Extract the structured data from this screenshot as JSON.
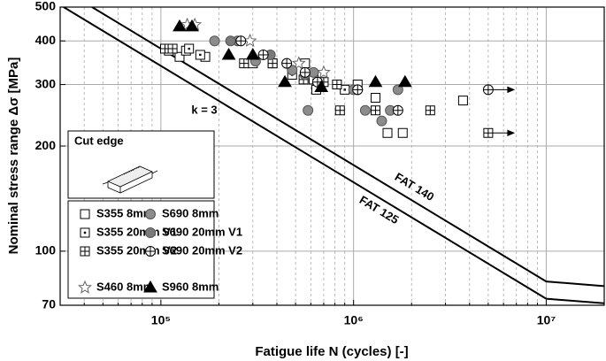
{
  "chart_data": {
    "type": "scatter",
    "xlabel": "Fatigue life N (cycles) [-]",
    "ylabel": "Nominal stress range Δσ [MPa]",
    "xscale": "log",
    "yscale": "log",
    "xlim": [
      30000,
      20000000
    ],
    "ylim": [
      70,
      500
    ],
    "xticks": [
      {
        "value": 100000,
        "label": "10⁵"
      },
      {
        "value": 1000000,
        "label": "10⁶"
      },
      {
        "value": 10000000,
        "label": "10⁷"
      }
    ],
    "xminorticks": [
      40000,
      50000,
      60000,
      70000,
      80000,
      90000,
      200000,
      300000,
      400000,
      500000,
      600000,
      700000,
      800000,
      900000,
      2000000,
      3000000,
      4000000,
      5000000,
      6000000,
      7000000,
      8000000,
      9000000
    ],
    "yticks": [
      70,
      100,
      200,
      300,
      400,
      500
    ],
    "grid": true,
    "annotations": [
      "k = 3",
      "FAT 140",
      "FAT 125",
      "Cut edge"
    ],
    "lines": [
      {
        "x": [
          43904,
          10000000,
          20000000
        ],
        "values": [
          500,
          81.9,
          79.4
        ],
        "color": "#000000"
      },
      {
        "x": [
          31250,
          10000000,
          20000000
        ],
        "values": [
          500,
          73.1,
          70.9
        ],
        "color": "#000000"
      }
    ],
    "series": [
      {
        "name": "S355 8mm",
        "marker": "square",
        "color": "#ffffff",
        "x": [
          110000,
          125000,
          135000,
          170000,
          300000,
          380000,
          560000,
          640000,
          1050000,
          1300000,
          1500000,
          1800000,
          3700000
        ],
        "values": [
          375,
          360,
          375,
          360,
          345,
          345,
          345,
          290,
          300,
          275,
          218,
          218,
          270
        ]
      },
      {
        "name": "S355 20mm V1",
        "marker": "square-dot",
        "color": "#ffffff",
        "x": [
          140000,
          160000,
          480000,
          620000,
          900000
        ],
        "values": [
          380,
          365,
          320,
          310,
          290
        ]
      },
      {
        "name": "S355 20mm V2",
        "marker": "square-plus",
        "color": "#ffffff",
        "x": [
          105000,
          115000,
          270000,
          380000,
          550000,
          700000,
          820000,
          850000,
          1300000,
          2500000,
          5000000
        ],
        "values": [
          380,
          380,
          345,
          345,
          310,
          305,
          300,
          253,
          253,
          253,
          218
        ],
        "runout": [
          10
        ]
      },
      {
        "name": "S460 8mm",
        "marker": "star",
        "color": "#ffffff",
        "x": [
          137000,
          150000,
          290000,
          520000,
          700000
        ],
        "values": [
          445,
          445,
          400,
          345,
          325
        ]
      },
      {
        "name": "S690 8mm",
        "marker": "circle",
        "color": "#8c8c8c",
        "x": [
          190000,
          250000,
          310000,
          480000,
          620000,
          1000000,
          1700000,
          1400000,
          1550000,
          1150000,
          580000
        ],
        "values": [
          400,
          400,
          350,
          330,
          325,
          290,
          290,
          236,
          253,
          253,
          253
        ]
      },
      {
        "name": "S690 20mm V1",
        "marker": "circle",
        "color": "#7a7a7a",
        "x": [
          230000,
          370000,
          560000,
          1050000
        ],
        "values": [
          400,
          365,
          320,
          290
        ]
      },
      {
        "name": "S690 20mm V2",
        "marker": "circle-plus",
        "color": "#ffffff",
        "x": [
          260000,
          340000,
          450000,
          560000,
          650000,
          1050000,
          1700000,
          5000000
        ],
        "values": [
          400,
          365,
          345,
          325,
          305,
          290,
          253,
          290
        ],
        "runout": [
          7
        ]
      },
      {
        "name": "S960 8mm",
        "marker": "triangle",
        "color": "#000000",
        "x": [
          125000,
          145000,
          225000,
          300000,
          440000,
          680000,
          1300000,
          1850000
        ],
        "values": [
          440,
          440,
          365,
          365,
          305,
          295,
          305,
          305
        ]
      }
    ]
  }
}
